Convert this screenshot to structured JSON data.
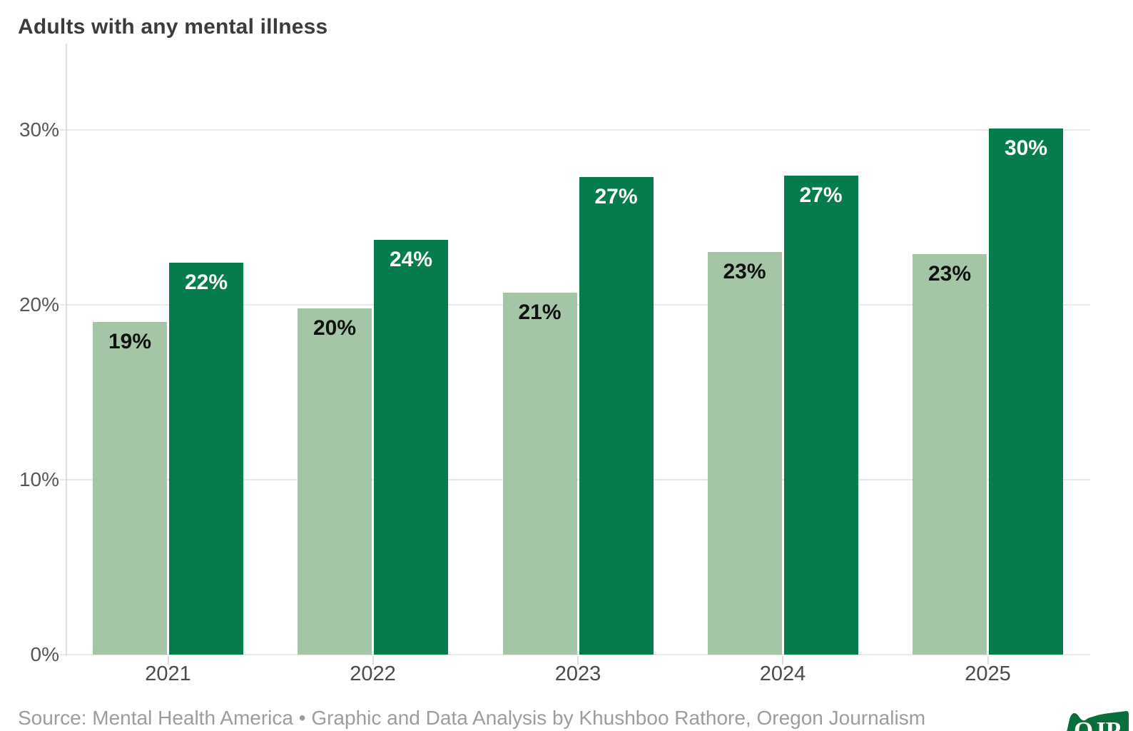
{
  "title": "Adults with any mental illness",
  "source_line": "Source: Mental Health America • Graphic and Data Analysis by Khushboo Rathore, Oregon Journalism",
  "logo": {
    "text": "OJP",
    "color": "#076e3c"
  },
  "colors": {
    "light_series": "#a4c5a6",
    "dark_series": "#047c4b",
    "grid": "#e9e9e9",
    "axis": "#dedede",
    "title_text": "#3c3c3c",
    "x_label_text": "#4b4b4b",
    "y_label_text": "#575757",
    "source_text": "#9d9d9d",
    "label_on_light": "#111111",
    "label_on_dark": "#ffffff"
  },
  "chart_data": {
    "type": "bar",
    "title": "Adults with any mental illness",
    "categories": [
      "2021",
      "2022",
      "2023",
      "2024",
      "2025"
    ],
    "series": [
      {
        "name": "lighter-green-series",
        "color": "#a4c5a6",
        "values": [
          19,
          20,
          21,
          23,
          23
        ],
        "values_precise": [
          19.0,
          19.8,
          20.7,
          23.0,
          22.9
        ],
        "labels": [
          "19%",
          "20%",
          "21%",
          "23%",
          "23%"
        ],
        "label_color": "#111111"
      },
      {
        "name": "darker-green-series",
        "color": "#047c4b",
        "values": [
          22,
          24,
          27,
          27,
          30
        ],
        "values_precise": [
          22.4,
          23.7,
          27.3,
          27.4,
          30.1
        ],
        "labels": [
          "22%",
          "24%",
          "27%",
          "27%",
          "30%"
        ],
        "label_color": "#ffffff"
      }
    ],
    "y_axis": {
      "tick_labels": [
        "0%",
        "10%",
        "20%",
        "30%"
      ],
      "tick_values": [
        0,
        10,
        20,
        30
      ],
      "ylim": [
        0,
        34
      ]
    },
    "x_axis": {
      "tick_labels": [
        "2021",
        "2022",
        "2023",
        "2024",
        "2025"
      ]
    },
    "grid": "horizontal",
    "legend": false,
    "value_labels": "inside-top"
  }
}
